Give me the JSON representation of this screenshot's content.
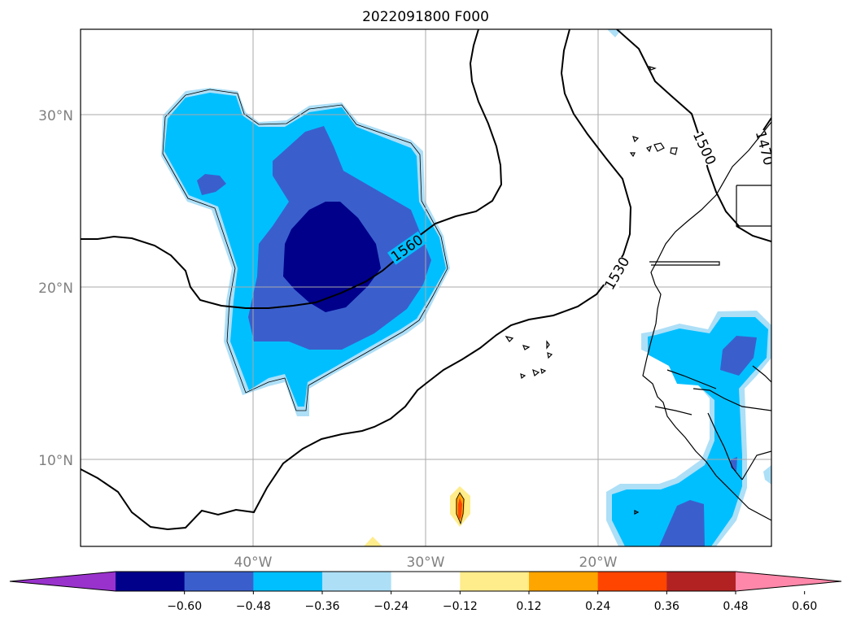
{
  "title": "2022091800 F000",
  "map": {
    "lon_range": [
      -50,
      -10
    ],
    "lat_range": [
      5,
      35
    ],
    "gridlines": true,
    "lat_ticks": [
      {
        "value": 30,
        "label": "30°N"
      },
      {
        "value": 20,
        "label": "20°N"
      },
      {
        "value": 10,
        "label": "10°N"
      }
    ],
    "lon_ticks": [
      {
        "value": -40,
        "label": "40°W"
      },
      {
        "value": -30,
        "label": "30°W"
      },
      {
        "value": -20,
        "label": "20°W"
      }
    ],
    "contour_labels": [
      "1560",
      "1530",
      "1500",
      "1470"
    ]
  },
  "colorbar": {
    "extend": "both",
    "ticks": [
      "−0.60",
      "−0.48",
      "−0.36",
      "−0.24",
      "−0.12",
      "0.12",
      "0.24",
      "0.36",
      "0.48",
      "0.60"
    ],
    "colors": [
      "#9932CC",
      "#00008B",
      "#3A5FCD",
      "#00BFFF",
      "#ADDFF7",
      "#FFFFFF",
      "#FFEC8B",
      "#FFA500",
      "#FF4500",
      "#B22222",
      "#FF88AA"
    ]
  }
}
